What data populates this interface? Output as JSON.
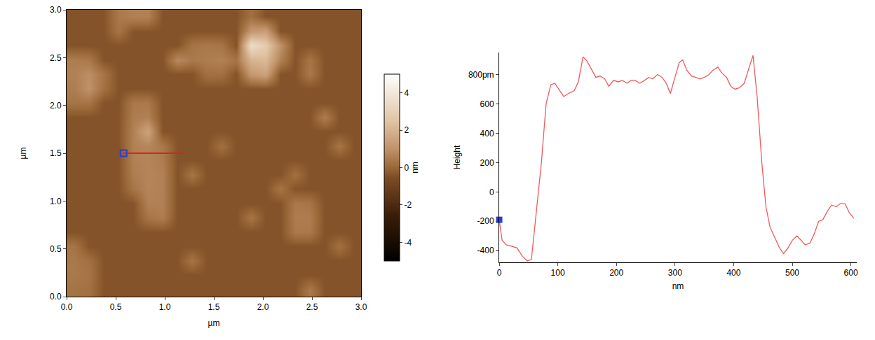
{
  "chart_data": [
    {
      "type": "heatmap",
      "x_label": "µm",
      "y_label": "µm",
      "colorbar_label": "nm",
      "xlim": [
        0,
        3
      ],
      "ylim": [
        0,
        3
      ],
      "xticks": [
        {
          "value": 0,
          "label": "0.0"
        },
        0.5,
        {
          "value": 1,
          "label": "1.0"
        },
        1.5,
        {
          "value": 2,
          "label": "2.0"
        },
        2.5,
        {
          "value": 3,
          "label": "3.0"
        }
      ],
      "yticks": [
        {
          "value": 0,
          "label": "0.0"
        },
        0.5,
        {
          "value": 1,
          "label": "1.0"
        },
        1.5,
        {
          "value": 2,
          "label": "2.0"
        },
        2.5,
        {
          "value": 3,
          "label": "3.0"
        }
      ],
      "zlim": [
        -5,
        5
      ],
      "zticks": [
        -4,
        -2,
        0,
        2,
        4
      ],
      "x": [
        0.075,
        0.225,
        0.375,
        0.525,
        0.675,
        0.825,
        0.975,
        1.125,
        1.275,
        1.425,
        1.575,
        1.725,
        1.875,
        2.025,
        2.175,
        2.325,
        2.475,
        2.625,
        2.775,
        2.925
      ],
      "y": [
        0.075,
        0.225,
        0.375,
        0.525,
        0.675,
        0.825,
        0.975,
        1.125,
        1.275,
        1.425,
        1.575,
        1.725,
        1.875,
        2.025,
        2.175,
        2.325,
        2.475,
        2.625,
        2.775,
        2.925
      ],
      "z": [
        [
          0.3,
          0.2,
          -0.4,
          -0.4,
          -0.4,
          -0.4,
          -0.4,
          -0.4,
          -0.4,
          -0.4,
          -0.4,
          -0.4,
          -0.4,
          -0.4,
          -0.4,
          -0.4,
          0.4,
          -0.4,
          -0.4,
          -0.4
        ],
        [
          0.4,
          0.3,
          -0.4,
          -0.4,
          -0.4,
          -0.4,
          -0.4,
          -0.4,
          -0.4,
          -0.4,
          -0.4,
          -0.4,
          -0.4,
          -0.4,
          -0.4,
          -0.4,
          -0.4,
          -0.4,
          -0.4,
          -0.4
        ],
        [
          0.4,
          0.2,
          -0.4,
          -0.4,
          -0.4,
          -0.4,
          -0.4,
          -0.4,
          0.3,
          -0.4,
          -0.4,
          -0.4,
          -0.4,
          -0.4,
          -0.4,
          -0.4,
          -0.4,
          -0.4,
          -0.4,
          -0.4
        ],
        [
          0.3,
          -0.4,
          -0.4,
          -0.4,
          -0.4,
          -0.4,
          -0.4,
          -0.4,
          -0.4,
          -0.4,
          -0.4,
          -0.4,
          -0.4,
          -0.4,
          -0.4,
          -0.4,
          -0.4,
          -0.4,
          0.2,
          -0.4
        ],
        [
          -0.4,
          -0.4,
          -0.4,
          -0.4,
          -0.4,
          -0.4,
          -0.4,
          -0.4,
          -0.4,
          -0.4,
          -0.4,
          -0.4,
          -0.4,
          -0.4,
          -0.4,
          0.4,
          0.4,
          -0.4,
          -0.4,
          -0.4
        ],
        [
          -0.4,
          -0.4,
          -0.4,
          -0.4,
          -0.4,
          0.3,
          0.5,
          -0.4,
          -0.4,
          -0.4,
          -0.4,
          -0.4,
          0.3,
          -0.4,
          -0.4,
          0.5,
          0.5,
          -0.4,
          -0.4,
          -0.4
        ],
        [
          -0.4,
          -0.4,
          -0.4,
          -0.4,
          -0.4,
          0.6,
          0.6,
          -0.4,
          -0.4,
          -0.4,
          -0.4,
          -0.4,
          -0.4,
          -0.4,
          -0.4,
          0.4,
          0.3,
          -0.4,
          -0.4,
          -0.4
        ],
        [
          -0.4,
          -0.4,
          -0.4,
          -0.4,
          0.3,
          0.7,
          0.6,
          -0.4,
          -0.4,
          -0.4,
          -0.4,
          -0.4,
          -0.4,
          -0.4,
          0.3,
          -0.4,
          -0.4,
          -0.4,
          -0.4,
          -0.4
        ],
        [
          -0.4,
          -0.4,
          -0.4,
          -0.4,
          0.5,
          0.7,
          0.6,
          -0.4,
          0.3,
          -0.4,
          -0.4,
          -0.4,
          -0.4,
          -0.4,
          -0.4,
          0.2,
          -0.4,
          -0.4,
          -0.4,
          -0.4
        ],
        [
          -0.4,
          -0.4,
          -0.4,
          -0.4,
          0.6,
          0.7,
          0.5,
          -0.4,
          -0.4,
          -0.4,
          -0.4,
          -0.4,
          -0.4,
          -0.4,
          -0.4,
          -0.4,
          -0.4,
          -0.4,
          -0.4,
          -0.4
        ],
        [
          -0.4,
          -0.4,
          -0.4,
          -0.4,
          0.6,
          0.7,
          0.4,
          -0.4,
          -0.4,
          -0.4,
          0.2,
          -0.4,
          -0.4,
          -0.4,
          -0.4,
          -0.4,
          -0.4,
          -0.4,
          0.3,
          -0.4
        ],
        [
          -0.4,
          -0.4,
          -0.4,
          -0.4,
          0.6,
          1.5,
          -0.4,
          -0.4,
          -0.4,
          -0.4,
          -0.4,
          -0.4,
          -0.4,
          -0.4,
          -0.4,
          -0.4,
          -0.4,
          -0.4,
          -0.4,
          -0.4
        ],
        [
          -0.4,
          -0.4,
          -0.4,
          -0.4,
          0.5,
          0.6,
          -0.4,
          -0.4,
          -0.4,
          -0.4,
          -0.4,
          -0.4,
          -0.4,
          -0.4,
          -0.4,
          -0.4,
          -0.4,
          0.5,
          -0.4,
          -0.4
        ],
        [
          0.3,
          0.3,
          -0.4,
          -0.4,
          0.4,
          0.4,
          -0.4,
          -0.4,
          -0.4,
          -0.4,
          -0.4,
          -0.4,
          -0.4,
          -0.4,
          -0.4,
          -0.4,
          -0.4,
          -0.4,
          -0.4,
          -0.4
        ],
        [
          0.5,
          1.0,
          0.2,
          -0.4,
          -0.4,
          -0.4,
          -0.4,
          -0.4,
          -0.4,
          -0.4,
          -0.4,
          -0.4,
          -0.4,
          -0.4,
          -0.4,
          -0.4,
          -0.4,
          -0.4,
          -0.4,
          -0.4
        ],
        [
          0.6,
          0.9,
          0.3,
          -0.4,
          -0.4,
          -0.4,
          -0.4,
          -0.4,
          -0.4,
          0.2,
          0.2,
          -0.4,
          1.2,
          1.5,
          -0.4,
          -0.4,
          0.4,
          -0.4,
          -0.4,
          -0.4
        ],
        [
          0.5,
          0.4,
          -0.4,
          -0.4,
          -0.4,
          -0.4,
          -0.4,
          0.8,
          0.4,
          0.5,
          0.6,
          0.3,
          2.0,
          2.2,
          0.6,
          -0.4,
          0.3,
          -0.4,
          -0.4,
          -0.4
        ],
        [
          -0.4,
          -0.4,
          -0.4,
          -0.4,
          -0.4,
          -0.4,
          -0.4,
          -0.4,
          0.3,
          0.4,
          0.3,
          -0.4,
          3.5,
          2.8,
          1.0,
          -0.4,
          -0.4,
          -0.4,
          -0.4,
          -0.4
        ],
        [
          -0.4,
          -0.4,
          -0.4,
          0.3,
          -0.4,
          -0.4,
          -0.4,
          -0.4,
          -0.4,
          -0.4,
          -0.4,
          -0.4,
          1.2,
          1.4,
          -0.4,
          -0.4,
          -0.4,
          -0.4,
          -0.4,
          -0.4
        ],
        [
          -0.4,
          -0.4,
          -0.4,
          0.4,
          0.6,
          0.6,
          -0.4,
          -0.4,
          -0.4,
          -0.4,
          -0.4,
          -0.4,
          0.2,
          -0.4,
          -0.4,
          -0.4,
          -0.4,
          -0.4,
          -0.4,
          -0.4
        ]
      ],
      "profile": {
        "x": [
          0.58,
          1.2
        ],
        "y": [
          1.5,
          1.5
        ],
        "color": "#e02020"
      },
      "cursor": {
        "x": 0.58,
        "y": 1.5,
        "color": "#2a3fd0",
        "marker": "square"
      }
    },
    {
      "type": "line",
      "x_label": "nm",
      "y_label": "Height",
      "xlim": [
        0,
        610
      ],
      "ylim": [
        -480,
        950
      ],
      "xticks": [
        0,
        100,
        200,
        300,
        400,
        500,
        600
      ],
      "yticks": [
        -400,
        -200,
        0,
        200,
        400,
        600,
        {
          "value": 800,
          "label": "800pm"
        }
      ],
      "color": "#f05a5a",
      "x": [
        0,
        5,
        12,
        20,
        30,
        40,
        48,
        55,
        62,
        72,
        80,
        88,
        95,
        102,
        110,
        118,
        128,
        135,
        143,
        150,
        158,
        165,
        172,
        180,
        187,
        195,
        203,
        210,
        218,
        225,
        232,
        240,
        248,
        255,
        262,
        270,
        278,
        285,
        292,
        300,
        307,
        313,
        320,
        328,
        335,
        343,
        350,
        358,
        365,
        373,
        380,
        388,
        395,
        402,
        410,
        418,
        425,
        433,
        440,
        448,
        455,
        462,
        470,
        478,
        485,
        493,
        500,
        508,
        515,
        522,
        530,
        537,
        545,
        552,
        560,
        567,
        575,
        582,
        590,
        597,
        605
      ],
      "values": [
        -190,
        -330,
        -360,
        -370,
        -380,
        -440,
        -470,
        -460,
        -200,
        200,
        600,
        730,
        740,
        700,
        650,
        670,
        690,
        750,
        920,
        890,
        830,
        780,
        790,
        770,
        720,
        760,
        750,
        760,
        740,
        760,
        760,
        740,
        760,
        780,
        770,
        800,
        780,
        740,
        670,
        780,
        880,
        900,
        830,
        790,
        780,
        770,
        780,
        800,
        830,
        850,
        810,
        780,
        720,
        700,
        710,
        740,
        830,
        930,
        650,
        200,
        -100,
        -240,
        -310,
        -380,
        -420,
        -380,
        -330,
        -300,
        -330,
        -360,
        -350,
        -290,
        -200,
        -190,
        -130,
        -90,
        -100,
        -80,
        -80,
        -140,
        -180
      ],
      "cursor": {
        "x": 0,
        "y": -190,
        "color": "#2a3fd0",
        "marker": "square"
      }
    }
  ]
}
